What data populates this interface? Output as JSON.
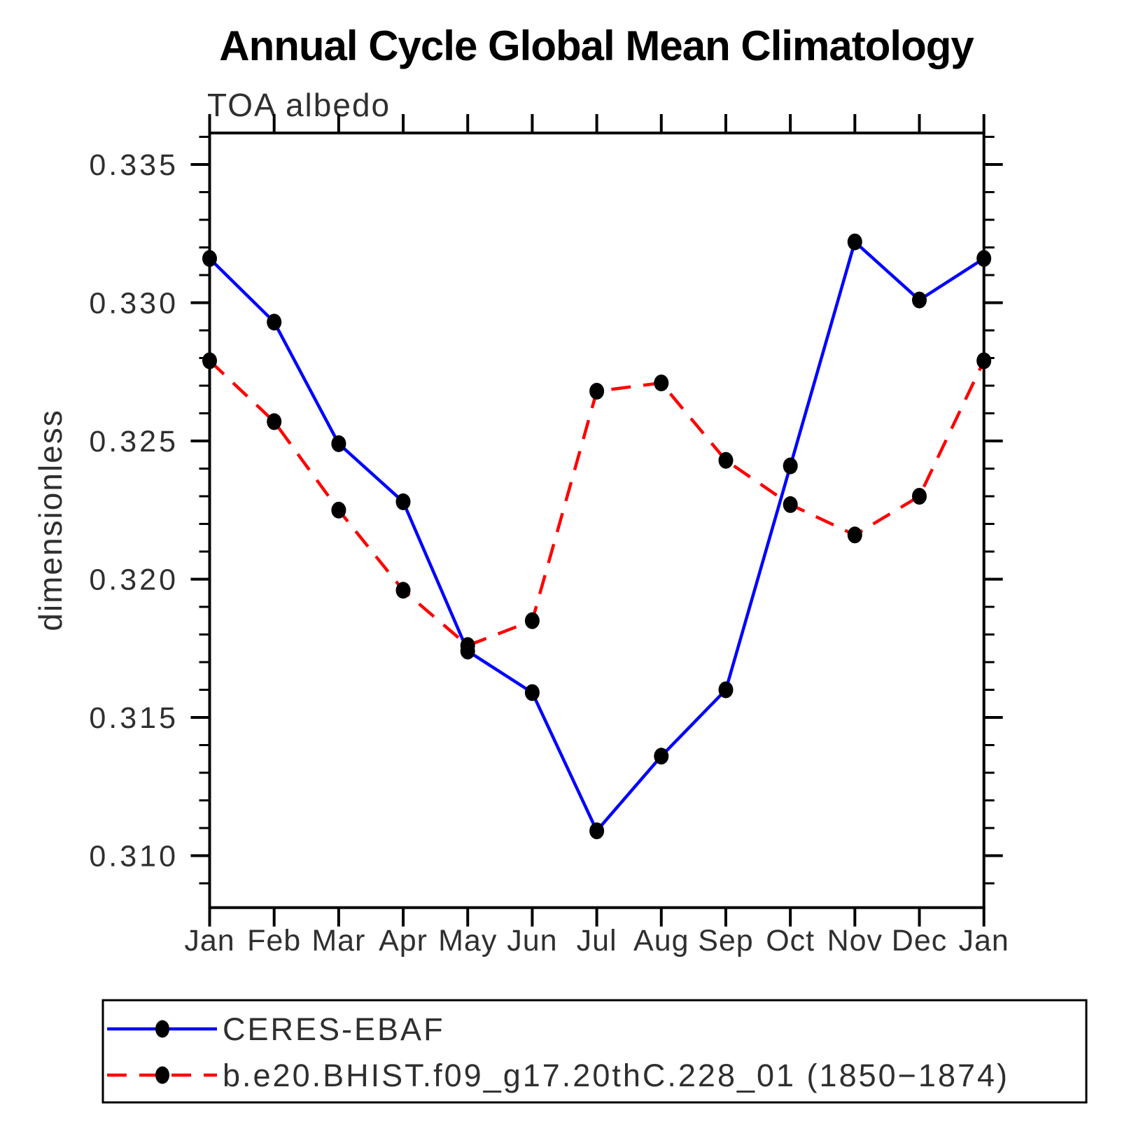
{
  "page": {
    "background": "#ffffff",
    "text_color": "#000000",
    "thin_text_color": "#2f2f2f"
  },
  "chart_data": {
    "type": "line",
    "title": "Annual Cycle Global Mean Climatology",
    "subtitle": "TOA albedo",
    "xlabel": "",
    "ylabel": "dimensionless",
    "categories": [
      "Jan",
      "Feb",
      "Mar",
      "Apr",
      "May",
      "Jun",
      "Jul",
      "Aug",
      "Sep",
      "Oct",
      "Nov",
      "Dec",
      "Jan"
    ],
    "y_ticks": [
      0.335,
      0.33,
      0.325,
      0.32,
      0.315,
      0.31
    ],
    "y_tick_labels": [
      "0.335",
      "0.330",
      "0.325",
      "0.320",
      "0.315",
      "0.310"
    ],
    "y_minor_step": 0.001,
    "ylim": [
      0.3081,
      0.3362
    ],
    "grid": false,
    "legend_position": "bottom-left-box",
    "frame_color": "#000000",
    "marker": "filled-circle",
    "marker_color": "#000000",
    "series": [
      {
        "name": "CERES-EBAF",
        "line_color": "#0000ff",
        "line_style": "solid",
        "values": [
          0.3316,
          0.3293,
          0.3249,
          0.3228,
          0.3174,
          0.3159,
          0.3109,
          0.3136,
          0.316,
          0.3241,
          0.3322,
          0.3301,
          0.3316
        ]
      },
      {
        "name": "b.e20.BHIST.f09_g17.20thC.228_01 (1850−1874)",
        "line_color": "#ff0000",
        "line_style": "dashed",
        "values": [
          0.3279,
          0.3257,
          0.3225,
          0.3196,
          0.3176,
          0.3185,
          0.3268,
          0.3271,
          0.3243,
          0.3227,
          0.3216,
          0.323,
          0.3279
        ]
      }
    ]
  }
}
